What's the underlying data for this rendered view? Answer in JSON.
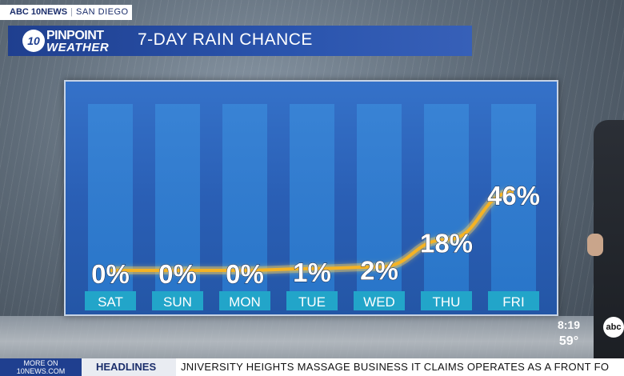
{
  "broadcast": {
    "station": "ABC 10NEWS",
    "location": "SAN DIEGO",
    "logo_number": "10",
    "logo_line1": "PINPOINT",
    "logo_line2": "WEATHER",
    "time": "8:19",
    "temperature": "59°",
    "network_bug": "abc"
  },
  "ticker": {
    "more_line1": "MORE ON",
    "more_line2": "10NEWS.COM",
    "headlines_label": "HEADLINES",
    "headline_text": "JNIVERSITY HEIGHTS MASSAGE BUSINESS IT CLAIMS OPERATES AS A FRONT FO"
  },
  "chart_data": {
    "type": "line",
    "title": "7-DAY RAIN CHANCE",
    "categories": [
      "SAT",
      "SUN",
      "MON",
      "TUE",
      "WED",
      "THU",
      "FRI"
    ],
    "values": [
      0,
      0,
      0,
      1,
      2,
      18,
      46
    ],
    "value_labels": [
      "0%",
      "0%",
      "0%",
      "1%",
      "2%",
      "18%",
      "46%"
    ],
    "unit": "%",
    "line_color": "#f5b324",
    "bar_color": "#2f87d6",
    "panel_color": "#2a5fb5",
    "ylim": [
      0,
      100
    ]
  }
}
